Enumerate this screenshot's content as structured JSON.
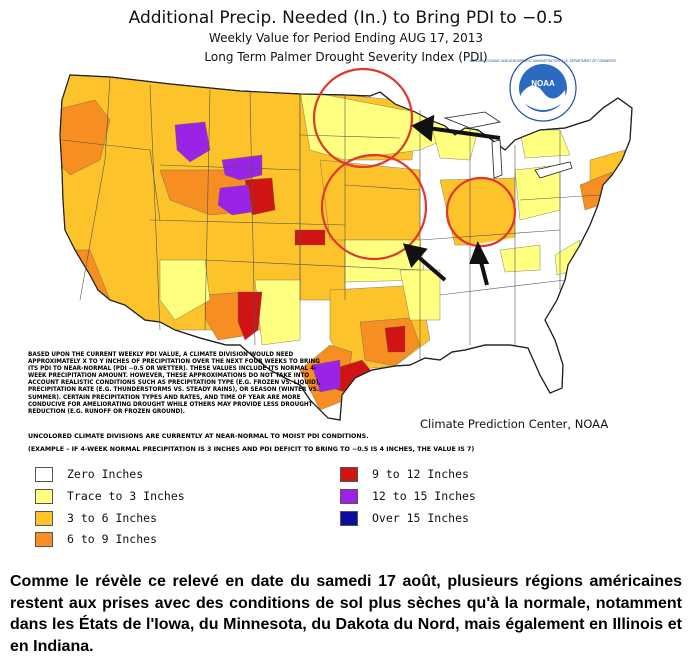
{
  "title": {
    "main": "Additional Precip. Needed (In.) to Bring PDI to −0.5",
    "sub1": "Weekly Value for Period Ending AUG 17, 2013",
    "sub2": "Long Term Palmer Drought Severity Index (PDI)"
  },
  "logo": {
    "center_text": "NOAA",
    "ring_text": "NATIONAL OCEANIC AND ATMOSPHERIC ADMINISTRATION · U.S. DEPARTMENT OF COMMERCE"
  },
  "note": {
    "method": "BASED UPON THE CURRENT WEEKLY PDI VALUE, A CLIMATE DIVISION WOULD NEED APPROXIMATELY X TO Y INCHES OF PRECIPITATION OVER THE NEXT FOUR WEEKS TO BRING ITS PDI TO NEAR-NORMAL (PDI −0.5 OR WETTER). THESE VALUES INCLUDE ITS NORMAL 4-WEEK PRECIPITATION AMOUNT. HOWEVER, THESE APPROXIMATIONS DO NOT TAKE INTO ACCOUNT REALISTIC CONDITIONS SUCH AS PRECIPITATION TYPE (E.G. FROZEN VS. LIQUID), PRECIPITATION RATE (E.G. THUNDERSTORMS VS. STEADY RAINS), OR SEASON (WINTER VS. SUMMER). CERTAIN PRECIPITATION TYPES AND RATES, AND TIME OF YEAR ARE MORE CONDUCIVE FOR AMELIORATING DROUGHT WHILE OTHERS MAY PROVIDE LESS DROUGHT REDUCTION (E.G. RUNOFF OR FROZEN GROUND).",
    "uncolored": "UNCOLORED CLIMATE DIVISIONS ARE CURRENTLY AT NEAR-NORMAL TO MOIST PDI CONDITIONS.",
    "example": "(EXAMPLE – IF 4-WEEK NORMAL PRECIPITATION IS 3 INCHES AND PDI DEFICIT TO BRING TO −0.5 IS 4 INCHES, THE VALUE IS 7)"
  },
  "credit": "Climate Prediction Center, NOAA",
  "legend": [
    {
      "label": "Zero Inches",
      "color": "#ffffff"
    },
    {
      "label": "Trace to 3 Inches",
      "color": "#ffff80"
    },
    {
      "label": "3 to 6 Inches",
      "color": "#fcc42a"
    },
    {
      "label": "6 to 9 Inches",
      "color": "#f68e22"
    },
    {
      "label": "9 to 12 Inches",
      "color": "#d01313"
    },
    {
      "label": "12 to 15 Inches",
      "color": "#9b23e6"
    },
    {
      "label": "Over 15 Inches",
      "color": "#0c0ca0"
    }
  ],
  "colors": {
    "zero": "#ffffff",
    "trace": "#ffff80",
    "three_six": "#fcc42a",
    "six_nine": "#f68e22",
    "nine_twelve": "#d01313",
    "twelve_fifteen": "#9b23e6",
    "circle": "#e0382a",
    "arrow": "#111111",
    "noaa_blue": "#1c4fa0"
  },
  "caption": "Comme le révèle ce relevé en date du samedi 17 août, plusieurs régions américaines restent aux prises avec des conditions de sol plus sèches qu'à la normale, notamment dans les États de l'Iowa, du Minnesota, du Dakota du Nord, mais également en Illinois et en Indiana."
}
